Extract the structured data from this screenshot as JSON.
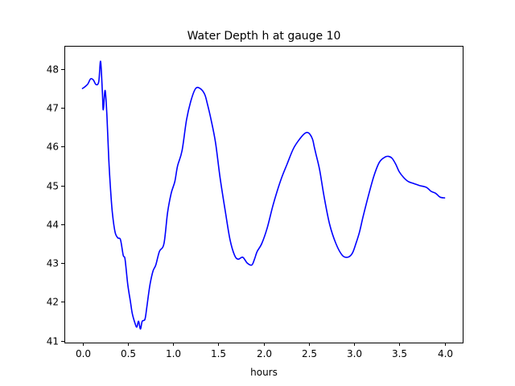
{
  "chart_data": {
    "type": "line",
    "title": "Water Depth h at gauge 10",
    "xlabel": "hours",
    "ylabel": "",
    "xlim": [
      -0.2,
      4.2
    ],
    "ylim": [
      40.95,
      48.6
    ],
    "xticks": [
      0.0,
      0.5,
      1.0,
      1.5,
      2.0,
      2.5,
      3.0,
      3.5,
      4.0
    ],
    "xtick_labels": [
      "0.0",
      "0.5",
      "1.0",
      "1.5",
      "2.0",
      "2.5",
      "3.0",
      "3.5",
      "4.0"
    ],
    "yticks": [
      41,
      42,
      43,
      44,
      45,
      46,
      47,
      48
    ],
    "ytick_labels": [
      "41",
      "42",
      "43",
      "44",
      "45",
      "46",
      "47",
      "48"
    ],
    "grid": false,
    "series": [
      {
        "color": "#0000ff",
        "x": [
          0.0,
          0.03,
          0.06,
          0.09,
          0.12,
          0.15,
          0.18,
          0.2,
          0.22,
          0.23,
          0.25,
          0.27,
          0.29,
          0.31,
          0.33,
          0.36,
          0.39,
          0.42,
          0.45,
          0.47,
          0.5,
          0.53,
          0.55,
          0.58,
          0.6,
          0.62,
          0.64,
          0.66,
          0.69,
          0.71,
          0.73,
          0.75,
          0.78,
          0.81,
          0.85,
          0.9,
          0.94,
          0.98,
          1.02,
          1.05,
          1.1,
          1.15,
          1.2,
          1.25,
          1.3,
          1.35,
          1.38,
          1.42,
          1.47,
          1.52,
          1.58,
          1.63,
          1.68,
          1.72,
          1.77,
          1.82,
          1.87,
          1.9,
          1.93,
          1.98,
          2.04,
          2.1,
          2.15,
          2.2,
          2.26,
          2.33,
          2.4,
          2.46,
          2.5,
          2.54,
          2.56,
          2.58,
          2.62,
          2.67,
          2.73,
          2.8,
          2.87,
          2.93,
          2.98,
          3.02,
          3.06,
          3.1,
          3.16,
          3.22,
          3.28,
          3.34,
          3.38,
          3.42,
          3.46,
          3.5,
          3.55,
          3.6,
          3.66,
          3.72,
          3.8,
          3.85,
          3.9,
          3.95,
          4.0
        ],
        "y": [
          47.5,
          47.55,
          47.62,
          47.75,
          47.72,
          47.6,
          47.68,
          48.2,
          47.4,
          46.95,
          47.45,
          46.8,
          45.7,
          44.9,
          44.3,
          43.8,
          43.65,
          43.6,
          43.2,
          43.1,
          42.45,
          42.0,
          41.7,
          41.45,
          41.35,
          41.5,
          41.3,
          41.5,
          41.55,
          41.85,
          42.2,
          42.5,
          42.8,
          42.95,
          43.3,
          43.5,
          44.3,
          44.8,
          45.1,
          45.5,
          45.9,
          46.7,
          47.2,
          47.5,
          47.5,
          47.35,
          47.1,
          46.7,
          46.1,
          45.2,
          44.3,
          43.6,
          43.2,
          43.1,
          43.15,
          43.0,
          42.95,
          43.1,
          43.3,
          43.5,
          43.9,
          44.45,
          44.85,
          45.2,
          45.55,
          45.95,
          46.2,
          46.35,
          46.35,
          46.2,
          46.0,
          45.8,
          45.4,
          44.7,
          44.0,
          43.5,
          43.2,
          43.15,
          43.25,
          43.5,
          43.8,
          44.2,
          44.75,
          45.25,
          45.6,
          45.73,
          45.75,
          45.7,
          45.55,
          45.35,
          45.2,
          45.1,
          45.05,
          45.0,
          44.95,
          44.85,
          44.8,
          44.7,
          44.68
        ]
      }
    ]
  }
}
